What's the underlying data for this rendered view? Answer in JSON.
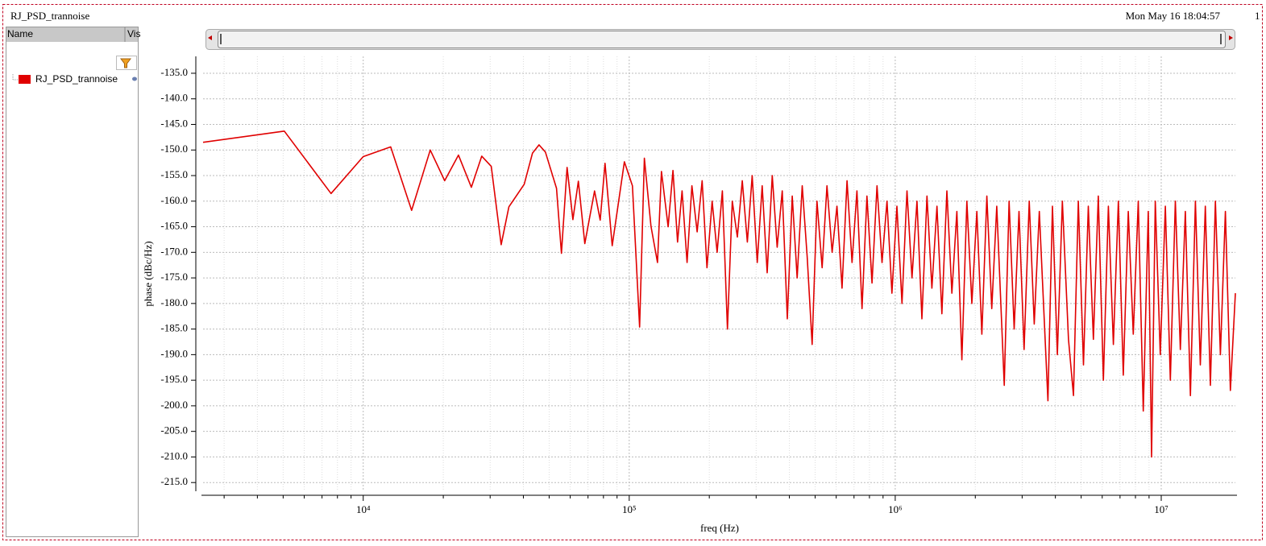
{
  "window": {
    "title": "RJ_PSD_trannoise",
    "timestamp": "Mon May 16 18:04:57",
    "corner_label": "1"
  },
  "panel": {
    "columns": [
      "Name",
      "Vis"
    ]
  },
  "chart_data": {
    "type": "line",
    "x_label": "freq (Hz)",
    "y_label": "phase (dBc/Hz)",
    "xscale": "log",
    "grid": true,
    "xlim": [
      2500,
      19000000
    ],
    "ylim": [
      -216.7,
      -131.7
    ],
    "xticks": [
      {
        "value": 10000,
        "label": "10⁴"
      },
      {
        "value": 100000,
        "label": "10⁵"
      },
      {
        "value": 1000000,
        "label": "10⁶"
      },
      {
        "value": 10000000,
        "label": "10⁷"
      }
    ],
    "minor_xticks": [
      3000,
      4000,
      5000,
      6000,
      7000,
      8000,
      9000,
      20000,
      30000,
      40000,
      50000,
      60000,
      70000,
      80000,
      90000,
      200000,
      300000,
      400000,
      500000,
      600000,
      700000,
      800000,
      900000,
      2000000,
      3000000,
      4000000,
      5000000,
      6000000,
      7000000,
      8000000,
      9000000
    ],
    "yticks": [
      {
        "value": -135,
        "label": "-135.0"
      },
      {
        "value": -140,
        "label": "-140.0"
      },
      {
        "value": -145,
        "label": "-145.0"
      },
      {
        "value": -150,
        "label": "-150.0"
      },
      {
        "value": -155,
        "label": "-155.0"
      },
      {
        "value": -160,
        "label": "-160.0"
      },
      {
        "value": -165,
        "label": "-165.0"
      },
      {
        "value": -170,
        "label": "-170.0"
      },
      {
        "value": -175,
        "label": "-175.0"
      },
      {
        "value": -180,
        "label": "-180.0"
      },
      {
        "value": -185,
        "label": "-185.0"
      },
      {
        "value": -190,
        "label": "-190.0"
      },
      {
        "value": -195,
        "label": "-195.0"
      },
      {
        "value": -200,
        "label": "-200.0"
      },
      {
        "value": -205,
        "label": "-205.0"
      },
      {
        "value": -210,
        "label": "-210.0"
      },
      {
        "value": -215,
        "label": "-215.0"
      }
    ],
    "x": [
      2500,
      5050,
      7570,
      10000,
      12680,
      15200,
      17860,
      20240,
      22800,
      25500,
      27900,
      30300,
      33000,
      35300,
      40300,
      43300,
      45800,
      48400,
      53300,
      55600,
      58400,
      61400,
      64400,
      68100,
      74100,
      77800,
      81100,
      86300,
      95900,
      102800,
      109400,
      114000,
      120700,
      127700,
      132200,
      140000,
      146000,
      152000,
      158000,
      165000,
      172000,
      180000,
      188000,
      196000,
      205000,
      214000,
      224000,
      234000,
      244000,
      255000,
      266000,
      278000,
      290000,
      303000,
      316000,
      330000,
      345000,
      360000,
      376000,
      393000,
      410000,
      428000,
      447000,
      467000,
      487000,
      508000,
      531000,
      554000,
      579000,
      604000,
      631000,
      659000,
      688000,
      718000,
      750000,
      783000,
      818000,
      854000,
      892000,
      931000,
      972000,
      1015000,
      1060000,
      1107000,
      1156000,
      1207000,
      1260000,
      1316000,
      1374000,
      1435000,
      1498000,
      1564000,
      1633000,
      1705000,
      1780000,
      1859000,
      1941000,
      2027000,
      2116000,
      2210000,
      2307000,
      2409000,
      2570000,
      2680000,
      2800000,
      2920000,
      3050000,
      3190000,
      3330000,
      3480000,
      3750000,
      3900000,
      4070000,
      4250000,
      4480000,
      4680000,
      4880000,
      5100000,
      5320000,
      5560000,
      5800000,
      6060000,
      6330000,
      6610000,
      6900000,
      7200000,
      7520000,
      7850000,
      8200000,
      8560000,
      8940000,
      9200000,
      9500000,
      9920000,
      10360000,
      10820000,
      11300000,
      11800000,
      12320000,
      12870000,
      13440000,
      14030000,
      14650000,
      15300000,
      15980000,
      16690000,
      17430000,
      18200000,
      19000000
    ],
    "series": [
      {
        "name": "RJ_PSD_trannoise",
        "color": "#e00000",
        "values": [
          -148.5,
          -146.3,
          -158.5,
          -151.3,
          -149.4,
          -161.8,
          -150,
          -156,
          -151,
          -157.3,
          -151.2,
          -153.2,
          -168.5,
          -161.1,
          -156.7,
          -150.6,
          -149,
          -150.4,
          -157.5,
          -170.2,
          -153.4,
          -163.6,
          -156.1,
          -168.3,
          -158,
          -163.7,
          -152.6,
          -168.7,
          -152.3,
          -157,
          -184.6,
          -151.6,
          -164.9,
          -172,
          -154.2,
          -165,
          -154,
          -168,
          -158,
          -172,
          -157,
          -166,
          -156,
          -173,
          -160,
          -170,
          -158,
          -185,
          -160,
          -167,
          -156,
          -168,
          -155,
          -172,
          -157,
          -174,
          -155,
          -169,
          -158,
          -183,
          -159,
          -175,
          -157,
          -171,
          -188,
          -160,
          -173,
          -157,
          -170,
          -161,
          -177,
          -156,
          -172,
          -158,
          -181,
          -159,
          -176,
          -157,
          -172,
          -160,
          -178,
          -161,
          -180,
          -158,
          -175,
          -160,
          -183,
          -159,
          -177,
          -161,
          -182,
          -158,
          -178,
          -162,
          -191,
          -160,
          -180,
          -162,
          -186,
          -159,
          -181,
          -161,
          -196,
          -160,
          -185,
          -162,
          -189,
          -160,
          -184,
          -162,
          -199,
          -161,
          -190,
          -160,
          -187,
          -198,
          -160,
          -192,
          -161,
          -187,
          -159,
          -195,
          -161,
          -188,
          -160,
          -194,
          -162,
          -186,
          -160,
          -201,
          -162,
          -210,
          -160,
          -190,
          -161,
          -195,
          -160,
          -189,
          -162,
          -198,
          -160,
          -192,
          -161,
          -196,
          -160,
          -190,
          -162,
          -197,
          -178
        ]
      }
    ]
  }
}
